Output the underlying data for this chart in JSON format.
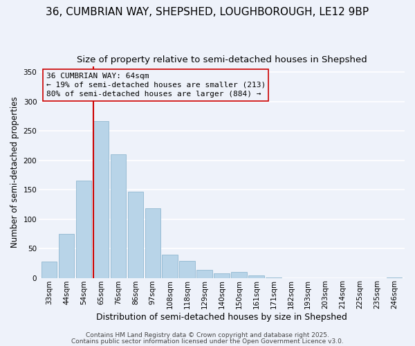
{
  "title1": "36, CUMBRIAN WAY, SHEPSHED, LOUGHBOROUGH, LE12 9BP",
  "title2": "Size of property relative to semi-detached houses in Shepshed",
  "categories": [
    "33sqm",
    "44sqm",
    "54sqm",
    "65sqm",
    "76sqm",
    "86sqm",
    "97sqm",
    "108sqm",
    "118sqm",
    "129sqm",
    "140sqm",
    "150sqm",
    "161sqm",
    "171sqm",
    "182sqm",
    "193sqm",
    "203sqm",
    "214sqm",
    "225sqm",
    "235sqm",
    "246sqm"
  ],
  "values": [
    28,
    75,
    165,
    267,
    210,
    146,
    118,
    39,
    29,
    14,
    8,
    10,
    4,
    1,
    0,
    0,
    0,
    0,
    0,
    0,
    1
  ],
  "bar_color": "#b8d4e8",
  "bar_edge_color": "#90b8d0",
  "vline_x_index": 3,
  "vline_color": "#cc0000",
  "annotation_line1": "36 CUMBRIAN WAY: 64sqm",
  "annotation_line2": "← 19% of semi-detached houses are smaller (213)",
  "annotation_line3": "80% of semi-detached houses are larger (884) →",
  "annotation_box_edge_color": "#cc0000",
  "xlabel": "Distribution of semi-detached houses by size in Shepshed",
  "ylabel": "Number of semi-detached properties",
  "ylim": [
    0,
    360
  ],
  "yticks": [
    0,
    50,
    100,
    150,
    200,
    250,
    300,
    350
  ],
  "footer1": "Contains HM Land Registry data © Crown copyright and database right 2025.",
  "footer2": "Contains public sector information licensed under the Open Government Licence v3.0.",
  "bg_color": "#eef2fa",
  "title1_fontsize": 11,
  "title2_fontsize": 9.5,
  "xlabel_fontsize": 9,
  "ylabel_fontsize": 8.5,
  "tick_fontsize": 7.5,
  "annotation_fontsize": 8,
  "footer_fontsize": 6.5
}
